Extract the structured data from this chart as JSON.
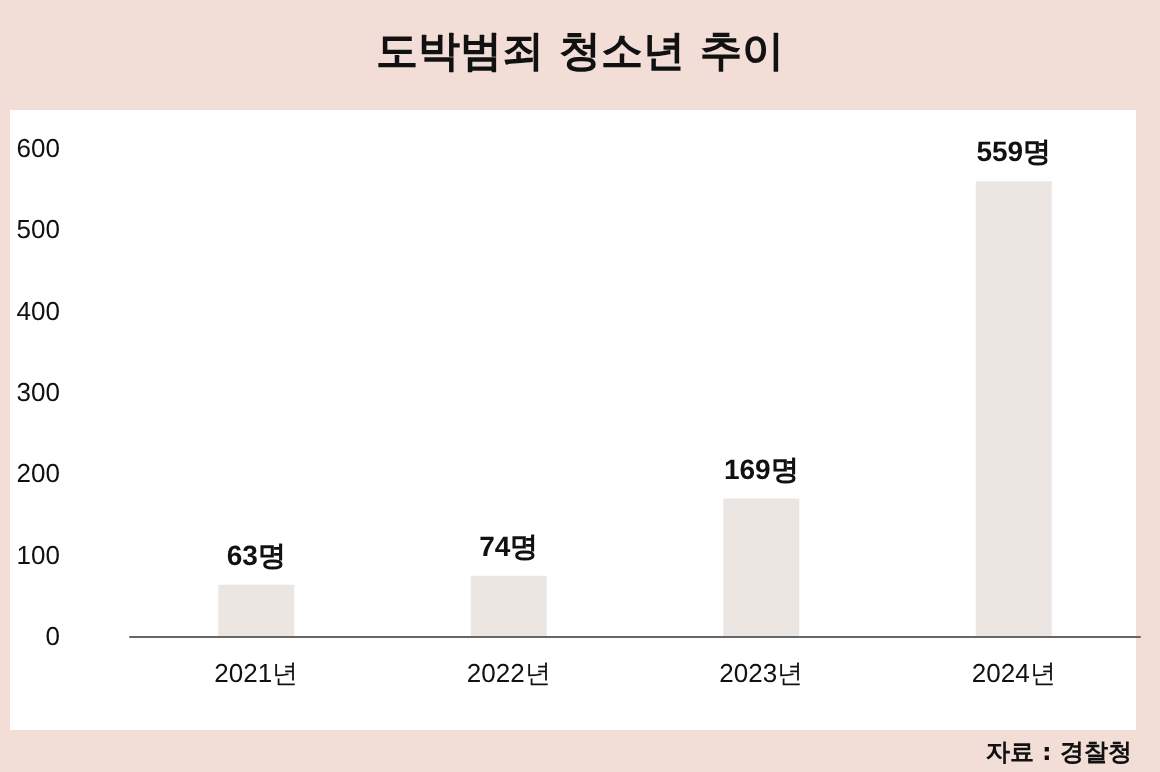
{
  "chart_data": {
    "type": "bar",
    "title": "도박범죄 청소년 추이",
    "categories": [
      "2021년",
      "2022년",
      "2023년",
      "2024년"
    ],
    "values": [
      63,
      74,
      169,
      559
    ],
    "value_labels": [
      "63명",
      "74명",
      "169명",
      "559명"
    ],
    "color": "#ebe6e2",
    "ylim": [
      0,
      600
    ],
    "yticks": [
      0,
      100,
      200,
      300,
      400,
      500,
      600
    ],
    "annotations": [
      "자료 : 경찰청"
    ]
  }
}
